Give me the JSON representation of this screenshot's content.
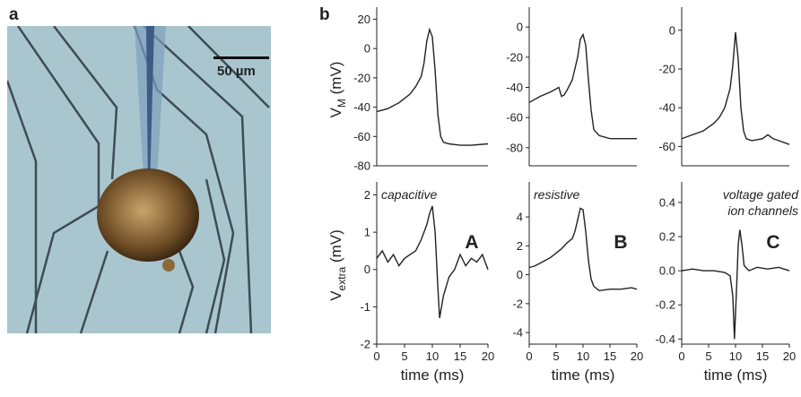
{
  "panels": {
    "a": "a",
    "b": "b",
    "scale_bar": "50 µm"
  },
  "row_labels": {
    "top": {
      "main": "V",
      "sub": "M",
      "unit": " (mV)"
    },
    "bottom": {
      "main": "V",
      "sub": "extra",
      "unit": " (mV)"
    }
  },
  "chart_data": [
    {
      "type": "line",
      "xlim": [
        0,
        20
      ],
      "ylim": [
        -80,
        27
      ],
      "yticks": [
        20,
        0,
        -20,
        -40,
        -60,
        -80
      ],
      "color": "#222",
      "x": [
        0,
        1,
        2,
        3,
        4,
        5,
        6,
        7,
        8,
        8.5,
        9,
        9.5,
        10,
        10.5,
        11,
        11.5,
        12,
        13,
        15,
        17,
        20
      ],
      "values": [
        -43,
        -42,
        -41,
        -39,
        -37,
        -34,
        -31,
        -26,
        -19,
        -10,
        5,
        13,
        8,
        -15,
        -45,
        -60,
        -64,
        -65,
        -66,
        -66,
        -65
      ]
    },
    {
      "type": "line",
      "xlim": [
        0,
        20
      ],
      "ylim": [
        -92,
        12
      ],
      "yticks": [
        0,
        -20,
        -40,
        -60,
        -80
      ],
      "color": "#222",
      "x": [
        0,
        2,
        4,
        5.5,
        6,
        6.5,
        7,
        8,
        9,
        9.5,
        10,
        10.5,
        11,
        11.5,
        12,
        13,
        15,
        20
      ],
      "values": [
        -50,
        -46,
        -43,
        -40,
        -46,
        -45,
        -42,
        -35,
        -20,
        -8,
        -5,
        -12,
        -35,
        -55,
        -68,
        -72,
        -74,
        -74
      ]
    },
    {
      "type": "line",
      "xlim": [
        0,
        20
      ],
      "ylim": [
        -70,
        11
      ],
      "yticks": [
        0,
        -20,
        -40,
        -60
      ],
      "color": "#222",
      "x": [
        0,
        2,
        4,
        6,
        7,
        8,
        9,
        9.5,
        10,
        10.5,
        11,
        11.5,
        12,
        13,
        15,
        16,
        17,
        18,
        20
      ],
      "values": [
        -56,
        -54,
        -52,
        -48,
        -45,
        -40,
        -30,
        -18,
        -1,
        -15,
        -40,
        -52,
        -56,
        -57,
        -56,
        -54,
        -56,
        -57,
        -59
      ]
    },
    {
      "type": "line",
      "xlim": [
        0,
        20
      ],
      "ylim": [
        -2,
        2.3
      ],
      "xticks": [
        0,
        5,
        10,
        15,
        20
      ],
      "yticks": [
        2,
        1,
        0,
        -1,
        -2
      ],
      "color": "#222",
      "xlabel": "time (ms)",
      "annotations": [
        "capacitive"
      ],
      "panel_label": "A",
      "x": [
        0,
        1,
        2,
        3,
        4,
        5,
        6,
        7,
        8,
        9,
        9.5,
        10,
        10.5,
        11,
        11.3,
        12,
        13,
        14,
        15,
        16,
        17,
        18,
        19,
        20
      ],
      "values": [
        0.3,
        0.5,
        0.2,
        0.4,
        0.1,
        0.3,
        0.4,
        0.5,
        0.8,
        1.2,
        1.5,
        1.7,
        1.0,
        -0.5,
        -1.3,
        -0.7,
        -0.2,
        0,
        0.4,
        0.1,
        0.3,
        0.2,
        0.4,
        0.0
      ]
    },
    {
      "type": "line",
      "xlim": [
        0,
        20
      ],
      "ylim": [
        -4.8,
        6.3
      ],
      "xticks": [
        0,
        5,
        10,
        15,
        20
      ],
      "yticks": [
        4,
        2,
        0,
        -2,
        -4
      ],
      "color": "#222",
      "xlabel": "time (ms)",
      "annotations": [
        "resistive"
      ],
      "panel_label": "B",
      "x": [
        0,
        1,
        2,
        3,
        4,
        5,
        6,
        7,
        8,
        8.5,
        9,
        9.5,
        10,
        10.5,
        11,
        11.5,
        12,
        13,
        15,
        17,
        19,
        20
      ],
      "values": [
        0.5,
        0.6,
        0.8,
        1,
        1.2,
        1.5,
        1.8,
        2.2,
        2.5,
        3,
        3.8,
        4.6,
        4.5,
        3,
        1,
        -0.3,
        -0.8,
        -1.1,
        -1,
        -1,
        -0.9,
        -1
      ]
    },
    {
      "type": "line",
      "xlim": [
        0,
        20
      ],
      "ylim": [
        -0.43,
        0.51
      ],
      "xticks": [
        0,
        5,
        10,
        15,
        20
      ],
      "yticks": [
        0.4,
        0.2,
        {
          "value": 0,
          "label": "0.0"
        },
        -0.2,
        -0.4
      ],
      "color": "#222",
      "xlabel": "time (ms)",
      "annotations": [
        "voltage gated",
        "ion channels"
      ],
      "panel_label": "C",
      "x": [
        0,
        2,
        4,
        6,
        8,
        9,
        9.5,
        9.8,
        10.2,
        10.5,
        10.8,
        11.2,
        11.6,
        12.5,
        14,
        16,
        18,
        20
      ],
      "values": [
        0.0,
        0.01,
        0.0,
        0.0,
        -0.01,
        -0.03,
        -0.15,
        -0.4,
        -0.1,
        0.15,
        0.24,
        0.15,
        0.03,
        0.0,
        0.02,
        0.01,
        0.02,
        0.0
      ]
    }
  ]
}
